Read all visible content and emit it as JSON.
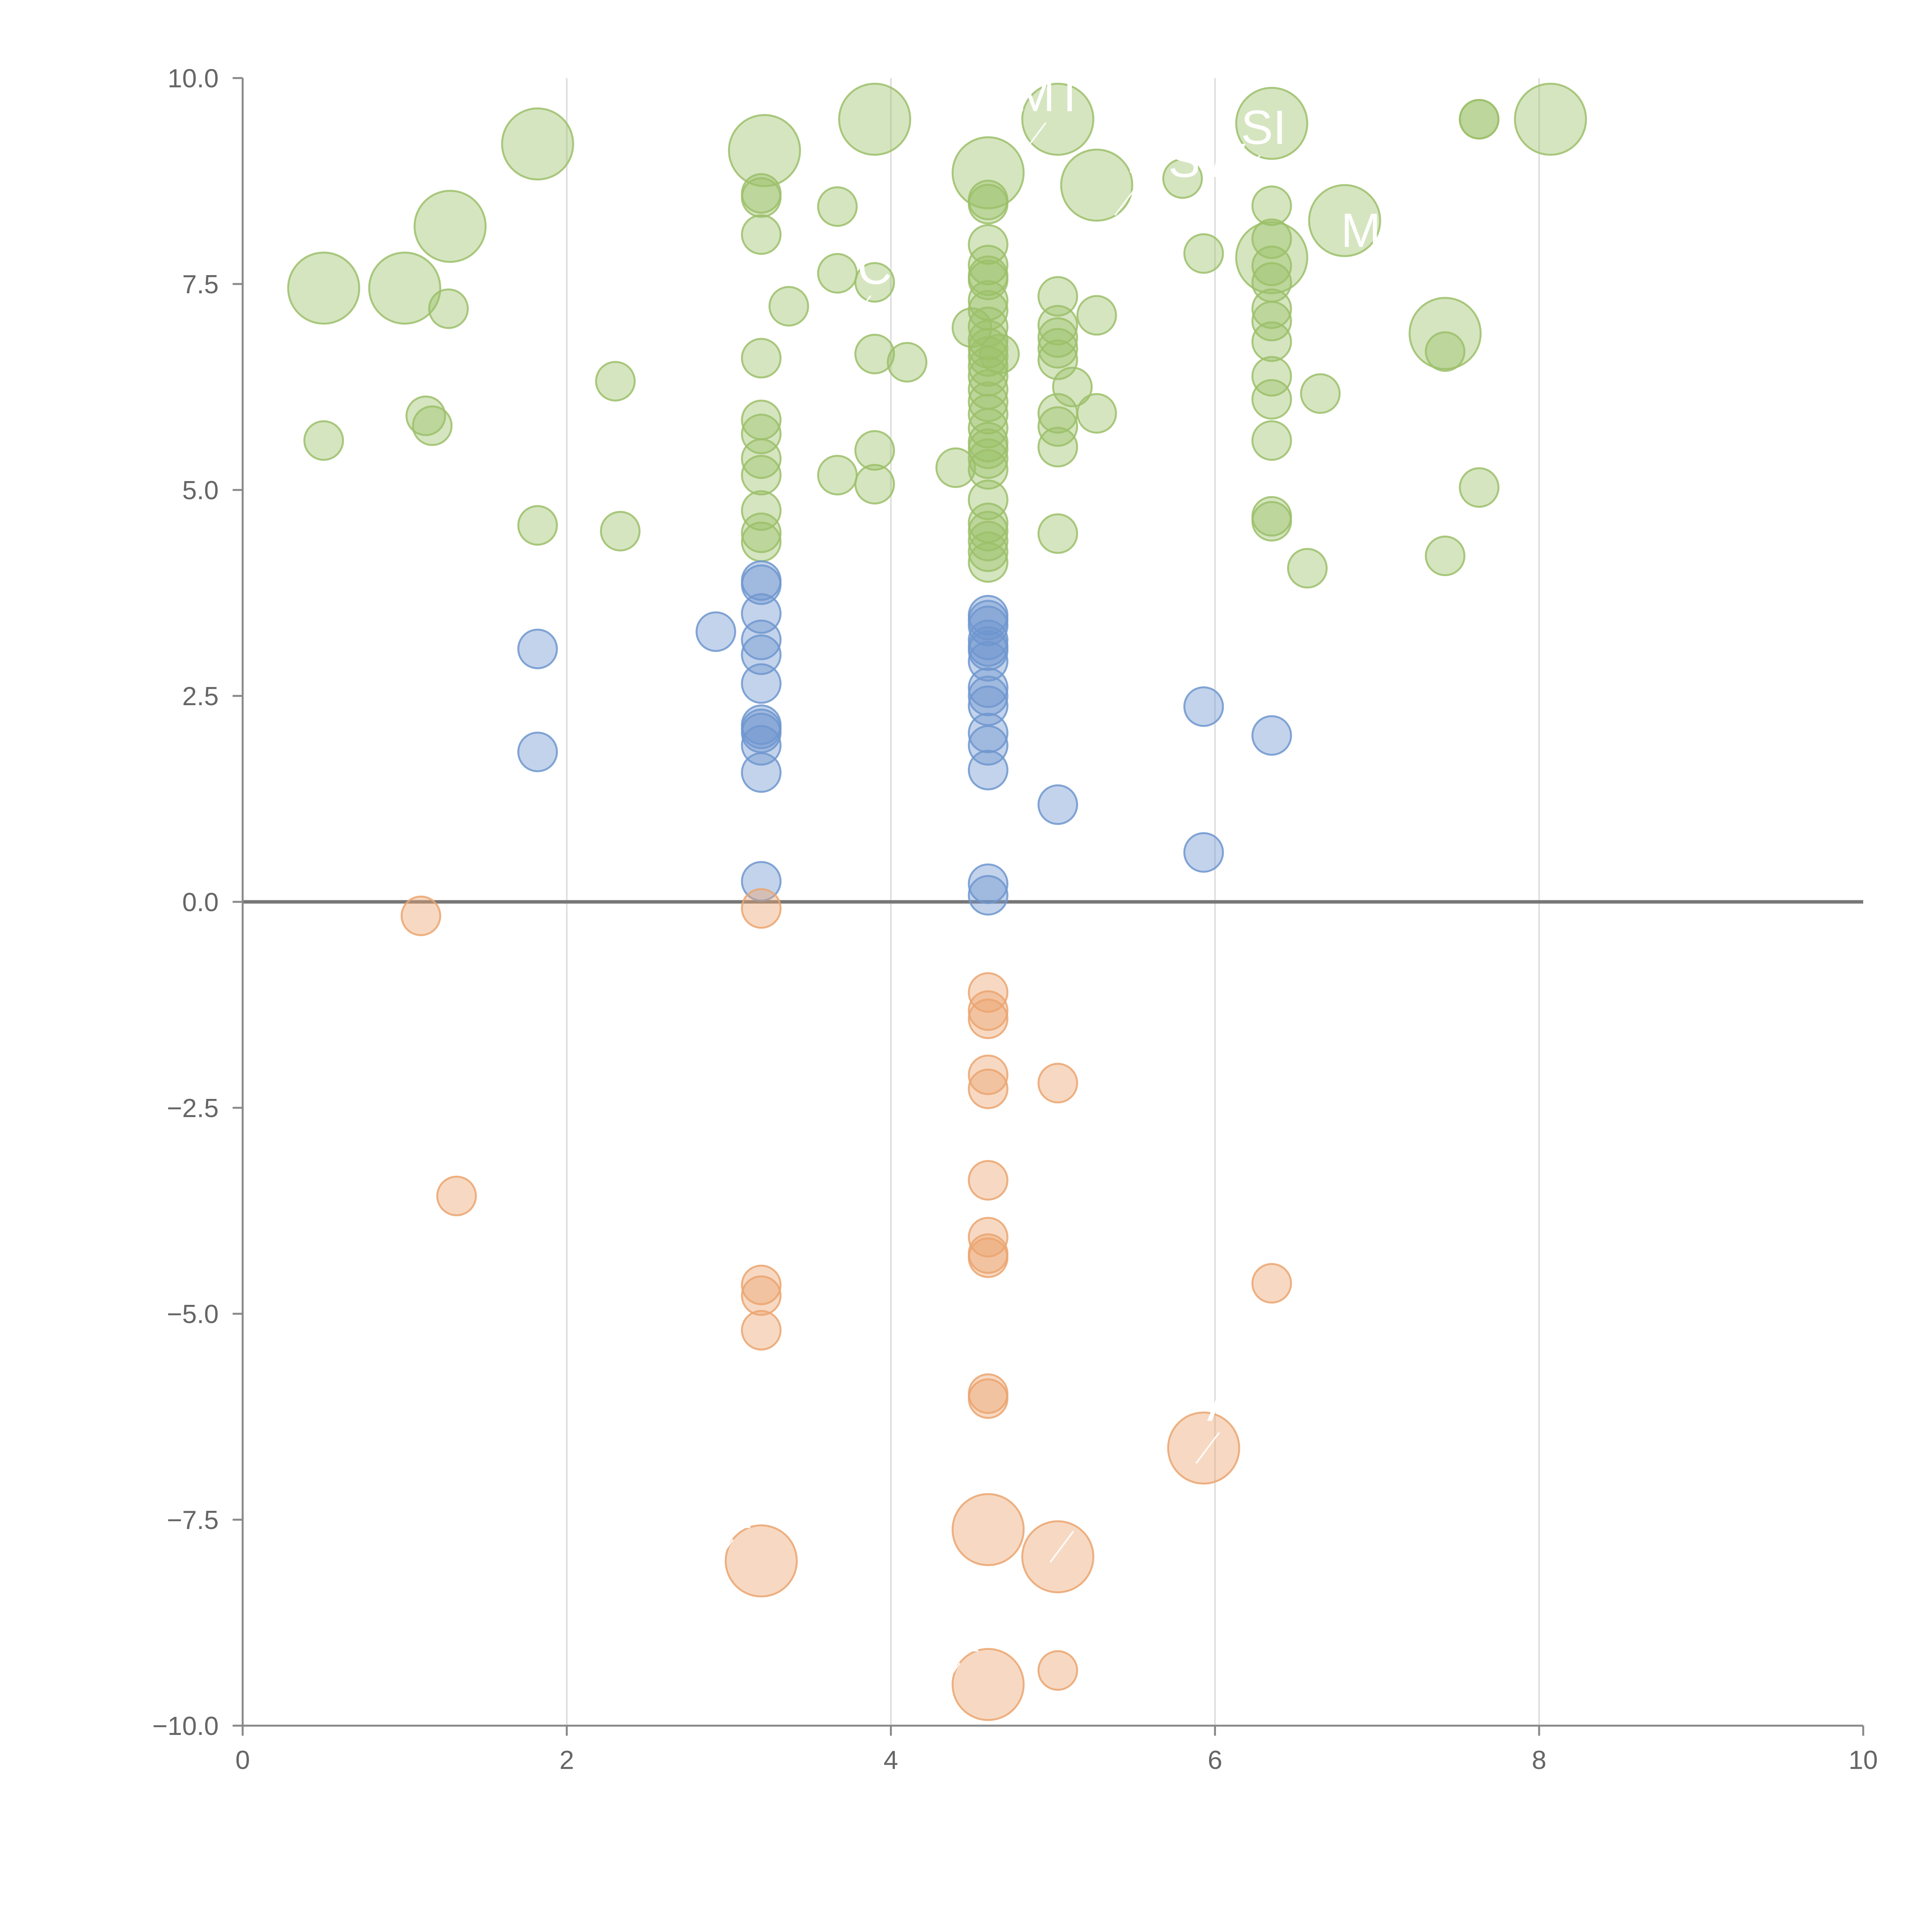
{
  "chart_data": {
    "type": "scatter",
    "title": "",
    "xlabel": "",
    "ylabel": "",
    "xlim": [
      0,
      10
    ],
    "ylim": [
      -10,
      10
    ],
    "grid": "vertical",
    "x_ticks": [
      "0",
      "2",
      "4",
      "6",
      "8",
      "10"
    ],
    "y_ticks": [
      "10.0",
      "7.5",
      "5.0",
      "2.5",
      "0.0",
      "−2.5",
      "−5.0",
      "−7.5",
      "−10.0"
    ],
    "colors": {
      "green": "#9cc06a",
      "blue": "#6f96cf",
      "orange": "#eba570",
      "zero_line": "#777777",
      "grid": "#dddddd",
      "axis": "#888888"
    },
    "annotations": [
      {
        "text": "MT",
        "x": 4.98,
        "y": 9.6
      },
      {
        "text": "E",
        "x": 5.55,
        "y": 8.85
      },
      {
        "text": "SW",
        "x": 5.95,
        "y": 8.8
      },
      {
        "text": "SI",
        "x": 6.3,
        "y": 9.2
      },
      {
        "text": "M",
        "x": 6.9,
        "y": 7.95
      },
      {
        "text": "C",
        "x": 3.9,
        "y": 7.5
      },
      {
        "text": "A",
        "x": 6.05,
        "y": -6.3
      },
      {
        "text": "N",
        "x": 3.05,
        "y": -7.6
      },
      {
        "text": "T",
        "x": 5.15,
        "y": -7.5
      },
      {
        "text": "R",
        "x": 4.45,
        "y": -9.1
      }
    ],
    "series": [
      {
        "name": "green",
        "color": "green",
        "points": [
          [
            0.5,
            7.45,
            1
          ],
          [
            1.0,
            7.45,
            1
          ],
          [
            1.28,
            8.2,
            1
          ],
          [
            1.82,
            9.2,
            1
          ],
          [
            3.22,
            9.12,
            1
          ],
          [
            3.9,
            9.5,
            1
          ],
          [
            4.6,
            8.85,
            1
          ],
          [
            5.03,
            9.5,
            1
          ],
          [
            5.27,
            8.7,
            1
          ],
          [
            6.35,
            9.45,
            1
          ],
          [
            6.35,
            7.82,
            1
          ],
          [
            6.8,
            8.27,
            1
          ],
          [
            8.07,
            9.5,
            1
          ],
          [
            7.42,
            6.9,
            1
          ],
          [
            0.5,
            5.6,
            0
          ],
          [
            1.13,
            5.9,
            0
          ],
          [
            1.17,
            5.78,
            0
          ],
          [
            1.27,
            7.2,
            0
          ],
          [
            1.82,
            4.57,
            0
          ],
          [
            2.3,
            6.32,
            0
          ],
          [
            2.33,
            4.5,
            0
          ],
          [
            3.2,
            8.6,
            0
          ],
          [
            3.2,
            8.55,
            0
          ],
          [
            3.2,
            8.1,
            0
          ],
          [
            3.2,
            6.6,
            0
          ],
          [
            3.2,
            5.85,
            0
          ],
          [
            3.2,
            5.68,
            0
          ],
          [
            3.2,
            5.38,
            0
          ],
          [
            3.2,
            5.18,
            0
          ],
          [
            3.2,
            4.75,
            0
          ],
          [
            3.2,
            4.48,
            0
          ],
          [
            3.2,
            4.37,
            0
          ],
          [
            3.37,
            7.23,
            0
          ],
          [
            3.67,
            8.44,
            0
          ],
          [
            3.67,
            7.63,
            0
          ],
          [
            3.67,
            5.18,
            0
          ],
          [
            3.9,
            7.52,
            0
          ],
          [
            3.9,
            6.65,
            0
          ],
          [
            3.9,
            5.48,
            0
          ],
          [
            3.9,
            5.07,
            0
          ],
          [
            4.1,
            6.55,
            0
          ],
          [
            4.4,
            5.27,
            0
          ],
          [
            4.5,
            6.97,
            0
          ],
          [
            4.6,
            8.52,
            0
          ],
          [
            4.6,
            8.47,
            0
          ],
          [
            4.6,
            7.98,
            0
          ],
          [
            4.6,
            7.73,
            0
          ],
          [
            4.6,
            7.6,
            0
          ],
          [
            4.6,
            7.55,
            0
          ],
          [
            4.6,
            7.3,
            0
          ],
          [
            4.6,
            7.18,
            0
          ],
          [
            4.6,
            6.98,
            0
          ],
          [
            4.6,
            6.82,
            0
          ],
          [
            4.6,
            6.72,
            0
          ],
          [
            4.6,
            6.62,
            0
          ],
          [
            4.6,
            6.5,
            0
          ],
          [
            4.6,
            6.38,
            0
          ],
          [
            4.6,
            6.22,
            0
          ],
          [
            4.6,
            6.07,
            0
          ],
          [
            4.6,
            5.92,
            0
          ],
          [
            4.6,
            5.75,
            0
          ],
          [
            4.6,
            5.58,
            0
          ],
          [
            4.6,
            5.5,
            0
          ],
          [
            4.6,
            5.38,
            0
          ],
          [
            4.6,
            5.25,
            0
          ],
          [
            4.6,
            4.88,
            0
          ],
          [
            4.6,
            4.6,
            0
          ],
          [
            4.6,
            4.5,
            0
          ],
          [
            4.6,
            4.38,
            0
          ],
          [
            4.6,
            4.25,
            0
          ],
          [
            4.6,
            4.12,
            0
          ],
          [
            4.67,
            6.65,
            0
          ],
          [
            5.03,
            7.35,
            0
          ],
          [
            5.03,
            7.0,
            0
          ],
          [
            5.03,
            6.85,
            0
          ],
          [
            5.03,
            6.72,
            0
          ],
          [
            5.03,
            6.58,
            0
          ],
          [
            5.03,
            5.93,
            0
          ],
          [
            5.03,
            5.77,
            0
          ],
          [
            5.03,
            5.52,
            0
          ],
          [
            5.03,
            4.47,
            0
          ],
          [
            5.12,
            6.25,
            0
          ],
          [
            5.27,
            7.12,
            0
          ],
          [
            5.27,
            5.93,
            0
          ],
          [
            5.8,
            8.78,
            0
          ],
          [
            5.93,
            7.87,
            0
          ],
          [
            6.35,
            8.45,
            0
          ],
          [
            6.35,
            8.05,
            0
          ],
          [
            6.35,
            7.72,
            0
          ],
          [
            6.35,
            7.52,
            0
          ],
          [
            6.35,
            7.2,
            0
          ],
          [
            6.35,
            7.05,
            0
          ],
          [
            6.35,
            6.8,
            0
          ],
          [
            6.35,
            6.38,
            0
          ],
          [
            6.35,
            6.1,
            0
          ],
          [
            6.35,
            5.6,
            0
          ],
          [
            6.35,
            4.68,
            0
          ],
          [
            6.35,
            4.62,
            0
          ],
          [
            6.57,
            4.05,
            0
          ],
          [
            6.65,
            6.17,
            0
          ],
          [
            7.42,
            6.68,
            0
          ],
          [
            7.42,
            4.2,
            0
          ],
          [
            7.63,
            9.5,
            0
          ],
          [
            7.63,
            9.5,
            0
          ],
          [
            7.63,
            5.03,
            0
          ]
        ]
      },
      {
        "name": "blue",
        "color": "blue",
        "points": [
          [
            1.82,
            3.07,
            0
          ],
          [
            1.82,
            1.82,
            0
          ],
          [
            2.92,
            3.28,
            0
          ],
          [
            3.2,
            3.9,
            0
          ],
          [
            3.2,
            3.85,
            0
          ],
          [
            3.2,
            3.5,
            0
          ],
          [
            3.2,
            3.18,
            0
          ],
          [
            3.2,
            3.0,
            0
          ],
          [
            3.2,
            2.65,
            0
          ],
          [
            3.2,
            2.15,
            0
          ],
          [
            3.2,
            2.1,
            0
          ],
          [
            3.2,
            2.05,
            0
          ],
          [
            3.2,
            1.9,
            0
          ],
          [
            3.2,
            1.57,
            0
          ],
          [
            3.2,
            0.25,
            0
          ],
          [
            4.6,
            3.48,
            0
          ],
          [
            4.6,
            3.42,
            0
          ],
          [
            4.6,
            3.35,
            0
          ],
          [
            4.6,
            3.18,
            0
          ],
          [
            4.6,
            3.1,
            0
          ],
          [
            4.6,
            3.05,
            0
          ],
          [
            4.6,
            2.92,
            0
          ],
          [
            4.6,
            2.6,
            0
          ],
          [
            4.6,
            2.5,
            0
          ],
          [
            4.6,
            2.38,
            0
          ],
          [
            4.6,
            2.05,
            0
          ],
          [
            4.6,
            1.9,
            0
          ],
          [
            4.6,
            1.6,
            0
          ],
          [
            4.6,
            0.22,
            0
          ],
          [
            4.6,
            0.08,
            0
          ],
          [
            5.03,
            1.18,
            0
          ],
          [
            5.93,
            2.37,
            0
          ],
          [
            5.93,
            0.6,
            0
          ],
          [
            6.35,
            2.02,
            0
          ]
        ]
      },
      {
        "name": "orange",
        "color": "orange",
        "points": [
          [
            1.1,
            -0.17,
            0
          ],
          [
            1.32,
            -3.57,
            0
          ],
          [
            3.2,
            -0.08,
            0
          ],
          [
            3.2,
            -4.65,
            0
          ],
          [
            3.2,
            -4.78,
            0
          ],
          [
            3.2,
            -5.2,
            0
          ],
          [
            4.6,
            -1.1,
            0
          ],
          [
            4.6,
            -1.32,
            0
          ],
          [
            4.6,
            -1.42,
            0
          ],
          [
            4.6,
            -2.1,
            0
          ],
          [
            4.6,
            -2.27,
            0
          ],
          [
            4.6,
            -3.38,
            0
          ],
          [
            4.6,
            -4.07,
            0
          ],
          [
            4.6,
            -4.27,
            0
          ],
          [
            4.6,
            -4.32,
            0
          ],
          [
            4.6,
            -5.97,
            0
          ],
          [
            4.6,
            -6.03,
            0
          ],
          [
            5.03,
            -2.2,
            0
          ],
          [
            5.03,
            -9.33,
            0
          ],
          [
            6.35,
            -4.63,
            0
          ],
          [
            5.93,
            -6.63,
            1
          ],
          [
            3.2,
            -8.0,
            1
          ],
          [
            4.6,
            -7.62,
            1
          ],
          [
            5.03,
            -7.95,
            1
          ],
          [
            4.6,
            -9.5,
            1
          ]
        ]
      }
    ]
  }
}
